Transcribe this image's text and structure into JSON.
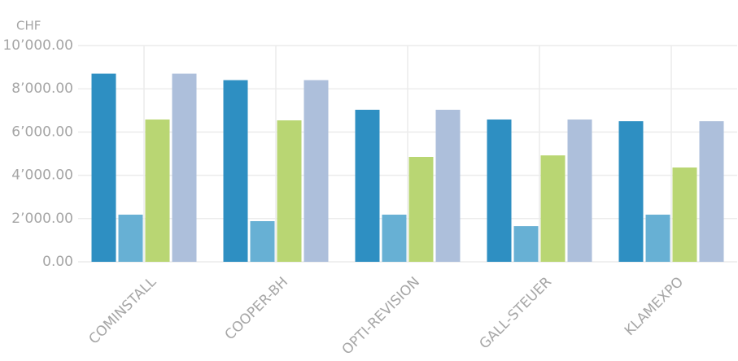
{
  "chart_data": {
    "type": "bar",
    "y_label": "CHF",
    "categories": [
      "COMINSTALL",
      "COOPER-BH",
      "OPTI-REVISION",
      "GALL-STEUER",
      "KLAMEXPO"
    ],
    "series": [
      {
        "color": "#2e8fc2",
        "values": [
          8700,
          8400,
          7030,
          6580,
          6500
        ]
      },
      {
        "color": "#67b0d4",
        "values": [
          2180,
          1880,
          2180,
          1650,
          2180
        ]
      },
      {
        "color": "#b9d673",
        "values": [
          6580,
          6540,
          4850,
          4920,
          4360
        ]
      },
      {
        "color": "#adbfdb",
        "values": [
          8700,
          8400,
          7030,
          6580,
          6500
        ]
      }
    ],
    "ylim": [
      0,
      10000
    ],
    "yticks": [
      {
        "value": 0,
        "label": "0.00"
      },
      {
        "value": 2000,
        "label": "2’000.00"
      },
      {
        "value": 4000,
        "label": "4’000.00"
      },
      {
        "value": 6000,
        "label": "6’000.00"
      },
      {
        "value": 8000,
        "label": "8’000.00"
      },
      {
        "value": 10000,
        "label": "10’000.00"
      }
    ],
    "grid": true
  }
}
